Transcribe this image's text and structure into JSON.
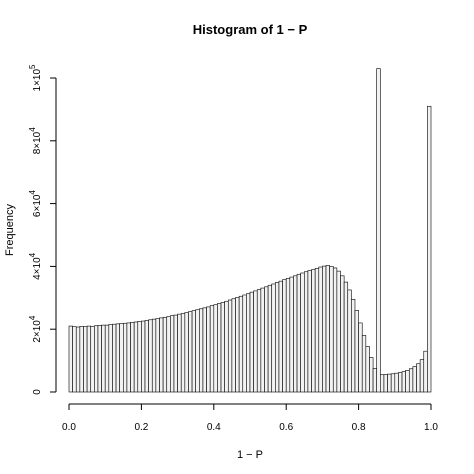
{
  "chart_data": {
    "type": "bar",
    "title": "Histogram of 1 − P",
    "xlabel": "1 − P",
    "ylabel": "Frequency",
    "xlim": [
      0,
      1
    ],
    "ylim": [
      0,
      100000
    ],
    "bin_width": 0.01,
    "x_ticks": [
      0.0,
      0.2,
      0.4,
      0.6,
      0.8,
      1.0
    ],
    "x_tick_labels": [
      "0.0",
      "0.2",
      "0.4",
      "0.6",
      "0.8",
      "1.0"
    ],
    "y_ticks": [
      0,
      20000,
      40000,
      60000,
      80000,
      100000
    ],
    "y_tick_labels": [
      {
        "base": "0",
        "exp": ""
      },
      {
        "base": "2×10",
        "exp": "4"
      },
      {
        "base": "4×10",
        "exp": "4"
      },
      {
        "base": "6×10",
        "exp": "4"
      },
      {
        "base": "8×10",
        "exp": "4"
      },
      {
        "base": "1×10",
        "exp": "5"
      }
    ],
    "bin_starts": [
      0.0,
      0.01,
      0.02,
      0.03,
      0.04,
      0.05,
      0.06,
      0.07,
      0.08,
      0.09,
      0.1,
      0.11,
      0.12,
      0.13,
      0.14,
      0.15,
      0.16,
      0.17,
      0.18,
      0.19,
      0.2,
      0.21,
      0.22,
      0.23,
      0.24,
      0.25,
      0.26,
      0.27,
      0.28,
      0.29,
      0.3,
      0.31,
      0.32,
      0.33,
      0.34,
      0.35,
      0.36,
      0.37,
      0.38,
      0.39,
      0.4,
      0.41,
      0.42,
      0.43,
      0.44,
      0.45,
      0.46,
      0.47,
      0.48,
      0.49,
      0.5,
      0.51,
      0.52,
      0.53,
      0.54,
      0.55,
      0.56,
      0.57,
      0.58,
      0.59,
      0.6,
      0.61,
      0.62,
      0.63,
      0.64,
      0.65,
      0.66,
      0.67,
      0.68,
      0.69,
      0.7,
      0.71,
      0.72,
      0.73,
      0.74,
      0.75,
      0.76,
      0.77,
      0.78,
      0.79,
      0.8,
      0.81,
      0.82,
      0.83,
      0.84,
      0.85,
      0.86,
      0.87,
      0.88,
      0.89,
      0.9,
      0.91,
      0.92,
      0.93,
      0.94,
      0.95,
      0.96,
      0.97,
      0.98,
      0.99
    ],
    "values": [
      21000,
      20800,
      20700,
      20900,
      20800,
      21000,
      20900,
      21100,
      21200,
      21300,
      21300,
      21500,
      21600,
      21700,
      21800,
      21900,
      22000,
      22200,
      22300,
      22500,
      22600,
      22800,
      23000,
      23200,
      23400,
      23600,
      23800,
      24000,
      24300,
      24500,
      24800,
      25000,
      25300,
      25600,
      25900,
      26200,
      26500,
      26800,
      27100,
      27500,
      27800,
      28200,
      28500,
      28900,
      29300,
      29700,
      30100,
      30500,
      30900,
      31300,
      31800,
      32200,
      32600,
      33100,
      33500,
      34000,
      34400,
      34900,
      35300,
      35800,
      36200,
      36600,
      37000,
      37500,
      37900,
      38300,
      38700,
      39000,
      39400,
      39800,
      40100,
      40300,
      40000,
      39500,
      38500,
      37000,
      35000,
      32500,
      29500,
      26000,
      22000,
      18000,
      14500,
      11000,
      7500,
      103000,
      5500,
      5600,
      5700,
      5800,
      6000,
      6200,
      6500,
      6900,
      7400,
      8100,
      9000,
      10300,
      13000,
      91000
    ]
  }
}
